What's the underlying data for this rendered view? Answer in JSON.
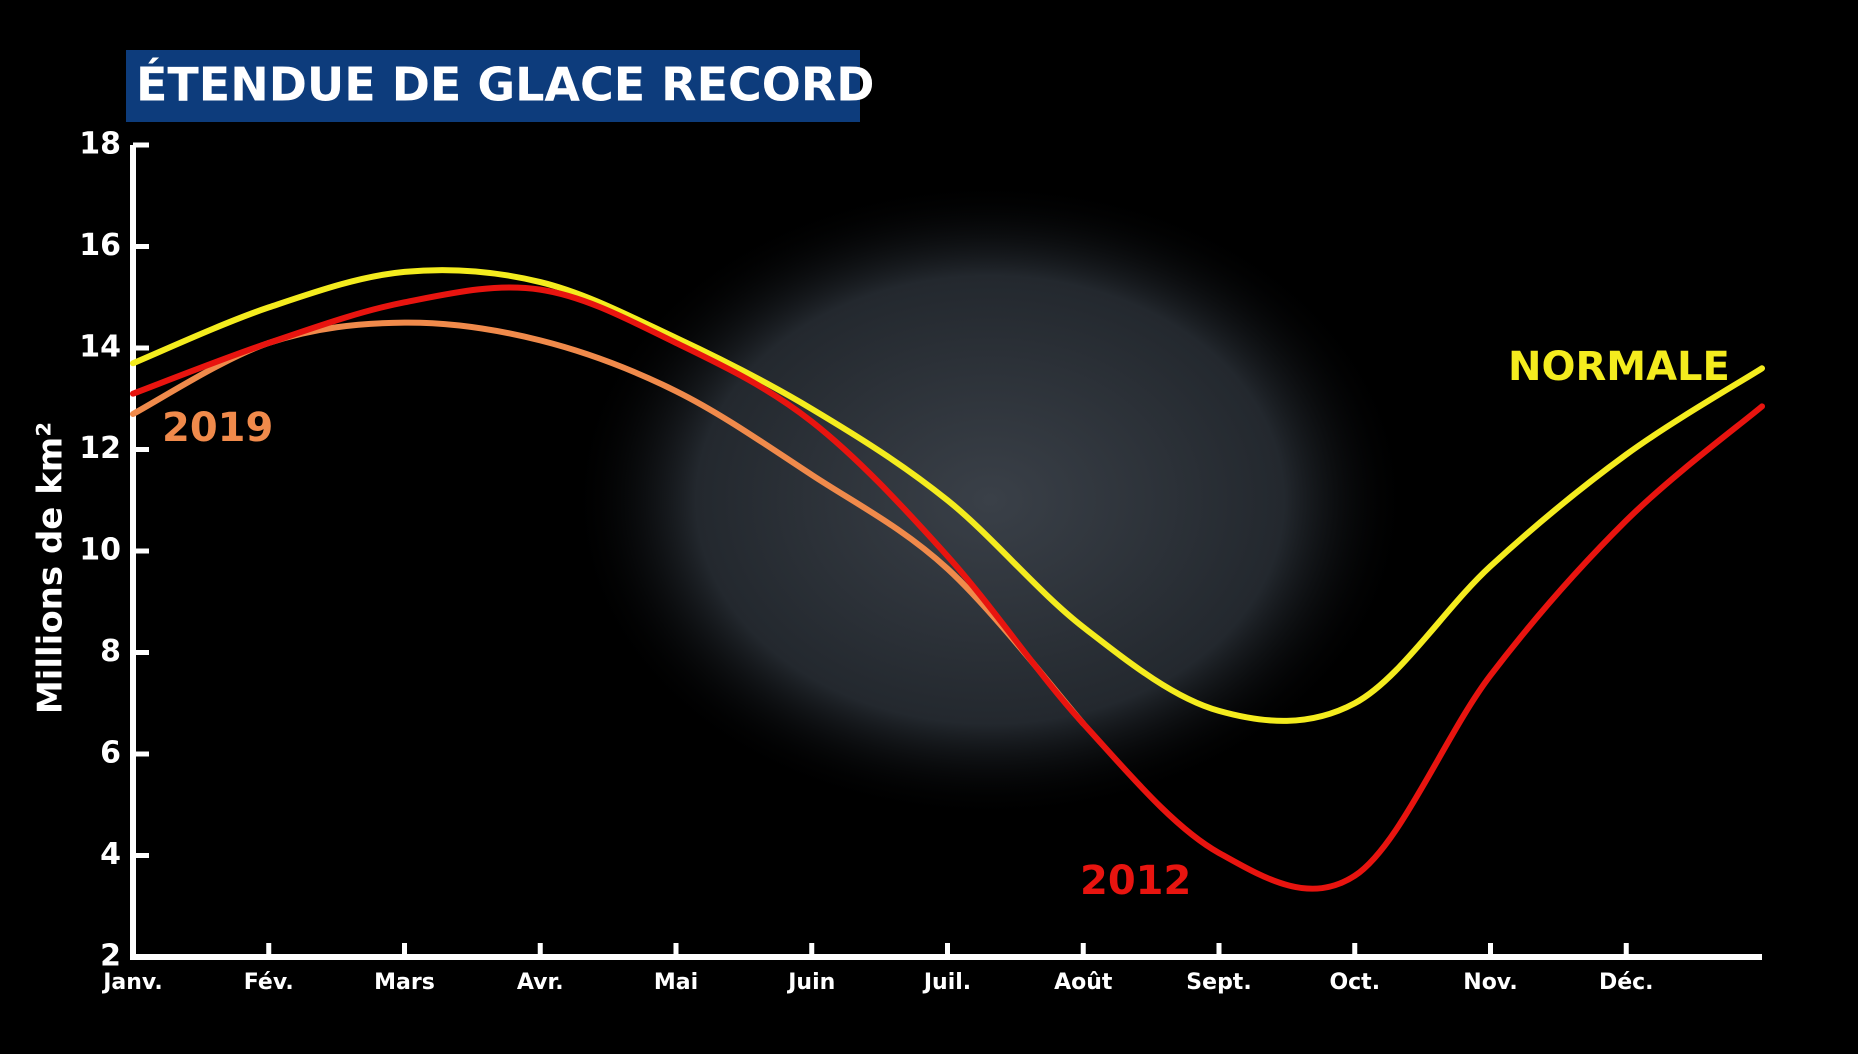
{
  "chart_data": {
    "type": "line",
    "title": "ÉTENDUE DE GLACE RECORD",
    "y_label": "Millions de km²",
    "categories": [
      "Janv.",
      "Fév.",
      "Mars",
      "Avr.",
      "Mai",
      "Juin",
      "Juil.",
      "Août",
      "Sept.",
      "Oct.",
      "Nov.",
      "Déc.",
      null
    ],
    "ylim": [
      2,
      18
    ],
    "yticks": [
      2,
      4,
      6,
      8,
      10,
      12,
      14,
      16,
      18
    ],
    "series": [
      {
        "name": "NORMALE",
        "color": "#f4ec1e",
        "values": [
          13.7,
          14.8,
          15.5,
          15.3,
          14.2,
          12.8,
          11.0,
          8.5,
          6.85,
          7.0,
          9.7,
          11.9,
          13.6
        ]
      },
      {
        "name": "2019",
        "color": "#f08a4b",
        "values": [
          12.7,
          14.1,
          14.5,
          14.15,
          13.15,
          11.5,
          9.65,
          6.6,
          null,
          null,
          null,
          null,
          null
        ]
      },
      {
        "name": "2012",
        "color": "#e8140f",
        "values": [
          13.1,
          14.1,
          14.9,
          15.15,
          14.1,
          12.55,
          9.9,
          6.6,
          4.05,
          3.6,
          7.55,
          10.6,
          12.85
        ]
      }
    ]
  }
}
